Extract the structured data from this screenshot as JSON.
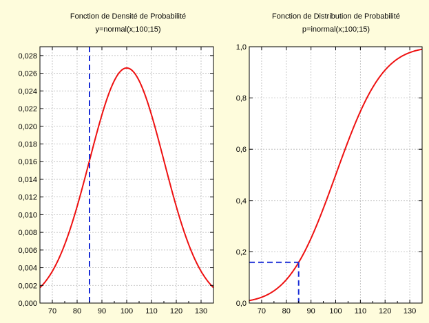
{
  "chart_data": [
    {
      "type": "line",
      "title": "Fonction de Densité de Probabilité",
      "subtitle": "y=normal(x;100;15)",
      "distribution": {
        "mean": 100,
        "sd": 15
      },
      "xlim": [
        65,
        135
      ],
      "ylim": [
        0,
        0.029
      ],
      "x_ticks": [
        70,
        80,
        90,
        100,
        110,
        120,
        130
      ],
      "y_ticks": [
        "0,000",
        "0,002",
        "0,004",
        "0,006",
        "0,008",
        "0,010",
        "0,012",
        "0,014",
        "0,016",
        "0,018",
        "0,020",
        "0,022",
        "0,024",
        "0,026",
        "0,028"
      ],
      "y_tick_values": [
        0,
        0.002,
        0.004,
        0.006,
        0.008,
        0.01,
        0.012,
        0.014,
        0.016,
        0.018,
        0.02,
        0.022,
        0.024,
        0.026,
        0.028
      ],
      "grid": true,
      "series": [
        {
          "x": [
            65,
            70,
            75,
            80,
            85,
            90,
            95,
            100,
            105,
            110,
            115,
            120,
            125,
            130,
            135
          ],
          "y": [
            0.0018,
            0.0036,
            0.0067,
            0.0109,
            0.0161,
            0.0213,
            0.0252,
            0.0266,
            0.0252,
            0.0213,
            0.0161,
            0.0109,
            0.0067,
            0.0036,
            0.0018
          ]
        }
      ],
      "marker": {
        "x": 85,
        "orientation": "vertical"
      },
      "colors": {
        "curve": "#ee1111",
        "marker": "#1a2ed6",
        "grid": "#b8b8b8"
      }
    },
    {
      "type": "line",
      "title": "Fonction de Distribution de Probabilité",
      "subtitle": "p=inormal(x;100;15)",
      "distribution": {
        "mean": 100,
        "sd": 15
      },
      "xlim": [
        65,
        135
      ],
      "ylim": [
        0,
        1
      ],
      "x_ticks": [
        70,
        80,
        90,
        100,
        110,
        120,
        130
      ],
      "y_ticks": [
        "0,0",
        "0,2",
        "0,4",
        "0,6",
        "0,8",
        "1,0"
      ],
      "y_tick_values": [
        0,
        0.2,
        0.4,
        0.6,
        0.8,
        1.0
      ],
      "grid": true,
      "series": [
        {
          "x": [
            65,
            70,
            75,
            80,
            85,
            90,
            95,
            100,
            105,
            110,
            115,
            120,
            125,
            130,
            135
          ],
          "y": [
            0.0098,
            0.0228,
            0.0478,
            0.0912,
            0.1587,
            0.2525,
            0.3694,
            0.5,
            0.6306,
            0.7475,
            0.8413,
            0.9088,
            0.9522,
            0.9772,
            0.9902
          ]
        }
      ],
      "marker": {
        "x": 85,
        "y": 0.1587,
        "orientation": "corner"
      },
      "colors": {
        "curve": "#ee1111",
        "marker": "#1a2ed6",
        "grid": "#b8b8b8"
      }
    }
  ]
}
